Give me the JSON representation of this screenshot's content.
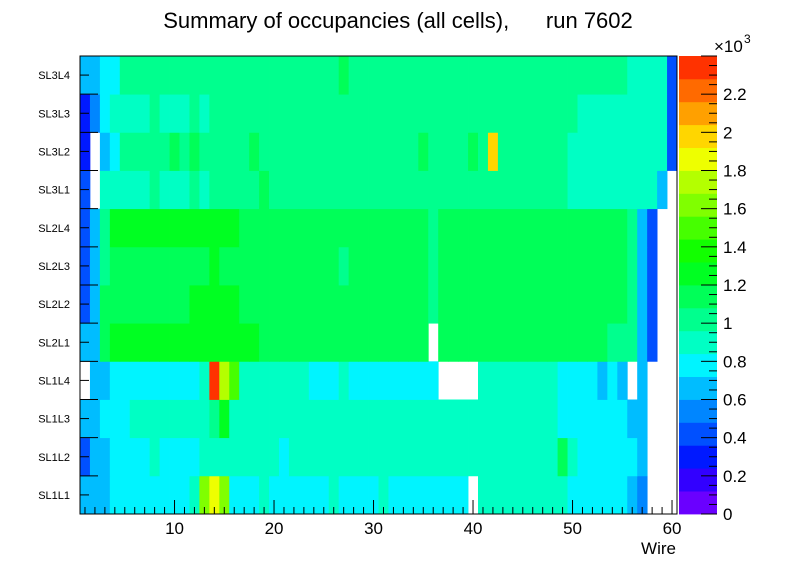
{
  "chart_data": {
    "type": "heatmap",
    "title": "Summary of occupancies (all cells),      run 7602",
    "xlabel": "Wire",
    "ylabel": "",
    "x_range": [
      0.5,
      60.5
    ],
    "x_ticks": [
      10,
      20,
      30,
      40,
      50,
      60
    ],
    "y_categories": [
      "SL1L1",
      "SL1L2",
      "SL1L3",
      "SL1L4",
      "SL2L1",
      "SL2L2",
      "SL2L3",
      "SL2L4",
      "SL3L1",
      "SL3L2",
      "SL3L3",
      "SL3L4"
    ],
    "colorbar": {
      "min": 0,
      "max": 2.4,
      "multiplier": "×10",
      "exponent": "3",
      "tick_labels": [
        "0",
        "0.2",
        "0.4",
        "0.6",
        "0.8",
        "1",
        "1.2",
        "1.4",
        "1.6",
        "1.8",
        "2",
        "2.2"
      ],
      "tick_values": [
        0,
        0.2,
        0.4,
        0.6,
        0.8,
        1.0,
        1.2,
        1.4,
        1.6,
        1.8,
        2.0,
        2.2
      ],
      "palette": [
        "#6a00ff",
        "#3200ff",
        "#0019ff",
        "#0050ff",
        "#0086ff",
        "#00bdff",
        "#00f4ff",
        "#00ffc4",
        "#00ff8e",
        "#00ff58",
        "#00ff22",
        "#12ff00",
        "#46ff00",
        "#80ff00",
        "#b4ff00",
        "#eeff00",
        "#ffd600",
        "#ffa000",
        "#ff6a00",
        "#ff3200"
      ]
    },
    "rows_x1000": [
      [
        0.6,
        0.6,
        0.7,
        0.8,
        0.8,
        0.8,
        0.8,
        0.8,
        0.8,
        0.8,
        0.8,
        0.85,
        1.6,
        1.9,
        1.6,
        0.8,
        0.8,
        0.8,
        0.85,
        0.8,
        0.8,
        0.8,
        0.8,
        0.8,
        0.8,
        0.85,
        0.8,
        0.8,
        0.8,
        0.8,
        0.85,
        0.8,
        0.8,
        0.8,
        0.8,
        0.8,
        0.8,
        0.8,
        0.8,
        null,
        0.9,
        0.9,
        0.9,
        0.9,
        0.9,
        0.9,
        0.9,
        0.9,
        0.9,
        0.8,
        0.8,
        0.8,
        0.75,
        0.75,
        0.75,
        0.6,
        0.5,
        null,
        null,
        null
      ],
      [
        0.4,
        0.6,
        0.7,
        0.75,
        0.8,
        0.8,
        0.8,
        0.85,
        0.8,
        0.8,
        0.8,
        0.8,
        0.9,
        0.9,
        0.9,
        0.85,
        0.85,
        0.85,
        0.9,
        0.85,
        0.8,
        0.85,
        0.85,
        0.85,
        0.85,
        0.9,
        0.85,
        0.85,
        0.85,
        0.85,
        0.85,
        0.85,
        0.85,
        0.85,
        0.85,
        0.85,
        0.85,
        0.85,
        0.85,
        0.85,
        0.85,
        0.85,
        0.85,
        0.85,
        0.85,
        0.9,
        0.85,
        0.9,
        1.1,
        0.85,
        0.8,
        0.8,
        0.75,
        0.75,
        0.75,
        0.75,
        0.6,
        null,
        null,
        null
      ],
      [
        0.6,
        0.7,
        0.75,
        0.8,
        0.8,
        0.85,
        0.85,
        0.85,
        0.85,
        0.85,
        0.85,
        0.85,
        0.9,
        1.05,
        1.2,
        0.9,
        0.85,
        0.85,
        0.9,
        0.85,
        0.85,
        0.85,
        0.85,
        0.85,
        0.85,
        0.85,
        0.85,
        0.85,
        0.85,
        0.85,
        0.85,
        0.85,
        0.85,
        0.85,
        0.85,
        0.85,
        0.85,
        0.85,
        0.85,
        0.85,
        0.85,
        0.85,
        0.85,
        0.85,
        0.85,
        0.85,
        0.85,
        0.9,
        0.8,
        0.8,
        0.8,
        0.8,
        0.75,
        0.8,
        0.75,
        0.6,
        0.6,
        null,
        null,
        null
      ],
      [
        null,
        0.6,
        0.6,
        0.75,
        0.75,
        0.75,
        0.75,
        0.8,
        0.8,
        0.8,
        0.8,
        0.8,
        0.85,
        2.35,
        1.7,
        1.5,
        0.85,
        0.85,
        0.85,
        0.85,
        0.85,
        0.85,
        0.85,
        0.8,
        0.8,
        0.8,
        0.85,
        0.8,
        0.8,
        0.8,
        0.8,
        0.8,
        0.8,
        0.8,
        0.8,
        0.8,
        null,
        null,
        null,
        null,
        0.9,
        0.9,
        0.9,
        0.9,
        0.9,
        0.9,
        0.9,
        0.9,
        0.75,
        0.75,
        0.75,
        0.75,
        0.7,
        0.75,
        0.6,
        null,
        0.6,
        null,
        null,
        null
      ],
      [
        0.6,
        0.65,
        1.1,
        1.2,
        1.2,
        1.2,
        1.2,
        1.2,
        1.2,
        1.2,
        1.25,
        1.3,
        1.2,
        1.2,
        1.2,
        1.2,
        1.2,
        1.2,
        1.15,
        1.1,
        1.15,
        1.15,
        1.1,
        1.15,
        1.15,
        1.1,
        1.15,
        1.1,
        1.1,
        1.1,
        1.15,
        1.1,
        1.1,
        1.1,
        1.1,
        null,
        1.1,
        1.1,
        1.1,
        1.1,
        1.1,
        1.1,
        1.1,
        1.1,
        1.1,
        1.1,
        1.15,
        1.1,
        1.1,
        1.1,
        1.1,
        1.1,
        1.1,
        1.05,
        1.05,
        1.0,
        0.6,
        0.4,
        null,
        null
      ],
      [
        0.45,
        0.6,
        1.1,
        1.1,
        1.15,
        1.15,
        1.15,
        1.15,
        1.15,
        1.15,
        1.15,
        1.2,
        1.2,
        1.2,
        1.2,
        1.2,
        1.15,
        1.1,
        1.1,
        1.1,
        1.1,
        1.1,
        1.1,
        1.1,
        1.1,
        1.1,
        1.1,
        1.1,
        1.1,
        1.1,
        1.1,
        1.1,
        1.1,
        1.1,
        1.1,
        1.0,
        1.1,
        1.1,
        1.1,
        1.1,
        1.1,
        1.1,
        1.1,
        1.1,
        1.1,
        1.1,
        1.1,
        1.1,
        1.1,
        1.1,
        1.1,
        1.1,
        1.1,
        1.1,
        1.1,
        1.0,
        0.6,
        0.4,
        null,
        null
      ],
      [
        0.45,
        0.6,
        1.05,
        1.1,
        1.15,
        1.15,
        1.15,
        1.15,
        1.15,
        1.15,
        1.15,
        1.15,
        1.15,
        1.2,
        1.15,
        1.15,
        1.15,
        1.1,
        1.1,
        1.1,
        1.1,
        1.1,
        1.1,
        1.1,
        1.1,
        1.1,
        1.05,
        1.1,
        1.1,
        1.1,
        1.1,
        1.1,
        1.1,
        1.1,
        1.1,
        1.0,
        1.1,
        1.1,
        1.1,
        1.1,
        1.1,
        1.1,
        1.1,
        1.1,
        1.1,
        1.1,
        1.1,
        1.1,
        1.1,
        1.1,
        1.1,
        1.1,
        1.1,
        1.1,
        1.1,
        1.0,
        0.6,
        0.4,
        null,
        null
      ],
      [
        0.45,
        0.6,
        1.05,
        1.2,
        1.2,
        1.2,
        1.2,
        1.2,
        1.2,
        1.2,
        1.2,
        1.2,
        1.2,
        1.2,
        1.2,
        1.2,
        1.15,
        1.15,
        1.15,
        1.15,
        1.15,
        1.15,
        1.15,
        1.15,
        1.15,
        1.15,
        1.15,
        1.15,
        1.15,
        1.15,
        1.15,
        1.15,
        1.15,
        1.15,
        1.15,
        1.05,
        1.15,
        1.15,
        1.15,
        1.15,
        1.15,
        1.15,
        1.15,
        1.15,
        1.15,
        1.15,
        1.15,
        1.15,
        1.15,
        1.15,
        1.15,
        1.15,
        1.1,
        1.1,
        1.1,
        1.0,
        0.6,
        0.4,
        null,
        null
      ],
      [
        0.4,
        null,
        0.9,
        0.95,
        0.95,
        0.95,
        0.95,
        1.0,
        0.95,
        0.95,
        0.95,
        1.0,
        0.95,
        1.0,
        1.0,
        1.0,
        1.0,
        1.0,
        1.1,
        1.05,
        1.05,
        1.0,
        1.0,
        1.0,
        1.0,
        1.0,
        1.05,
        1.0,
        1.0,
        1.0,
        1.0,
        1.0,
        1.0,
        1.0,
        1.0,
        1.0,
        1.0,
        1.0,
        1.0,
        1.0,
        1.0,
        1.0,
        1.0,
        1.0,
        1.0,
        1.0,
        1.0,
        1.0,
        1.05,
        0.95,
        0.95,
        0.95,
        0.95,
        0.95,
        0.95,
        0.95,
        0.95,
        0.95,
        0.7,
        null
      ],
      [
        0.3,
        null,
        0.65,
        0.8,
        1.0,
        1.05,
        1.05,
        1.05,
        1.05,
        1.1,
        1.05,
        1.1,
        1.05,
        1.05,
        1.05,
        1.05,
        1.05,
        1.1,
        1.05,
        1.05,
        1.05,
        1.05,
        1.05,
        1.05,
        1.05,
        1.05,
        1.05,
        1.05,
        1.05,
        1.05,
        1.05,
        1.05,
        1.05,
        1.05,
        1.1,
        1.05,
        1.05,
        1.05,
        1.05,
        1.1,
        1.05,
        1.95,
        1.05,
        1.05,
        1.05,
        1.05,
        1.05,
        1.05,
        1.0,
        0.9,
        0.9,
        0.9,
        0.9,
        0.9,
        0.9,
        0.9,
        0.9,
        0.9,
        0.9,
        0.4
      ],
      [
        0.35,
        0.5,
        0.75,
        0.9,
        0.95,
        0.95,
        0.95,
        1.0,
        0.95,
        0.95,
        0.95,
        1.0,
        0.95,
        1.0,
        1.0,
        1.0,
        1.0,
        1.0,
        1.0,
        1.05,
        1.0,
        1.0,
        1.0,
        1.0,
        1.0,
        1.0,
        1.0,
        1.0,
        1.0,
        1.0,
        1.0,
        1.0,
        1.0,
        1.0,
        1.0,
        1.0,
        1.0,
        1.0,
        1.0,
        1.0,
        1.0,
        1.0,
        1.0,
        1.0,
        1.0,
        1.0,
        1.0,
        1.0,
        1.0,
        1.0,
        0.95,
        0.95,
        0.95,
        0.95,
        0.95,
        0.95,
        0.9,
        0.95,
        0.9,
        0.4
      ],
      [
        0.7,
        0.7,
        0.75,
        0.8,
        1.0,
        1.0,
        1.0,
        1.0,
        1.0,
        1.0,
        1.0,
        1.0,
        1.0,
        1.0,
        1.0,
        1.0,
        1.0,
        1.0,
        1.0,
        1.0,
        1.0,
        1.0,
        1.0,
        1.0,
        1.0,
        1.0,
        1.1,
        1.0,
        1.0,
        1.0,
        1.0,
        1.0,
        1.0,
        1.0,
        1.0,
        1.0,
        1.0,
        1.0,
        1.0,
        1.0,
        1.0,
        1.0,
        1.0,
        1.0,
        1.0,
        1.0,
        1.0,
        1.0,
        1.0,
        1.0,
        1.0,
        1.0,
        1.0,
        1.0,
        1.0,
        0.95,
        0.95,
        0.95,
        0.9,
        0.45
      ]
    ]
  }
}
